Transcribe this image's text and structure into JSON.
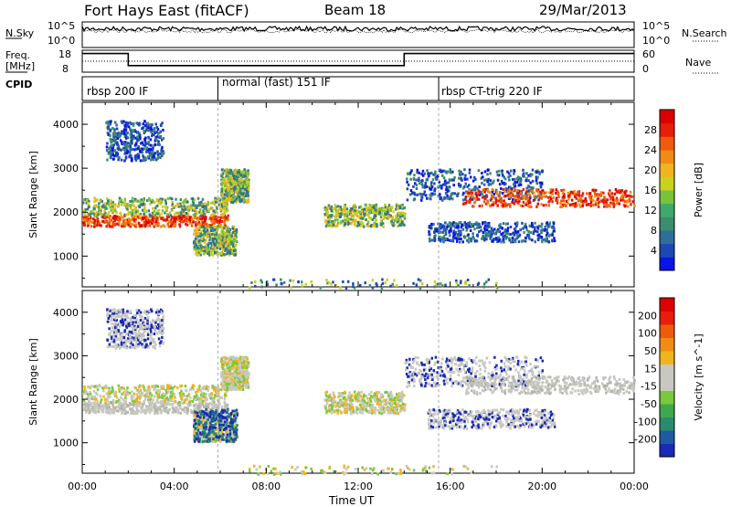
{
  "header": {
    "radar": "Fort Hays East (fitACF)",
    "beam": "Beam 18",
    "date": "29/Mar/2013"
  },
  "noise_panel": {
    "left_label": "N.Sky",
    "right_label": "N.Search",
    "left_ticks": [
      "10^5",
      "10^0"
    ],
    "right_ticks": [
      "10^5",
      "10^0"
    ]
  },
  "freq_panel": {
    "left_label_line1": "Freq.",
    "left_label_line2": "[MHz]",
    "right_label": "Nave",
    "left_ticks": [
      "18",
      "8"
    ],
    "right_ticks": [
      "60",
      "0"
    ],
    "freq_steps": [
      {
        "from_h": 0,
        "to_h": 2.0,
        "value": 0.85
      },
      {
        "from_h": 2.0,
        "to_h": 14.0,
        "value": 0.3
      },
      {
        "from_h": 14.0,
        "to_h": 24.0,
        "value": 0.85
      }
    ],
    "nave_level": 0.5
  },
  "cpid": {
    "label": "CPID",
    "modes": [
      {
        "start_h": 0.0,
        "label": "rbsp 200 IF"
      },
      {
        "start_h": 5.9,
        "label": "normal (fast) 151 IF"
      },
      {
        "start_h": 15.5,
        "label": "rbsp CT-trig 220 IF"
      }
    ]
  },
  "chart_data": [
    {
      "type": "heatmap",
      "title": "",
      "xlabel": "Time UT",
      "ylabel": "Slant Range [km]",
      "x_ticks": [
        "00:00",
        "04:00",
        "08:00",
        "12:00",
        "16:00",
        "20:00",
        "00:00"
      ],
      "xlim_hours": [
        0,
        24
      ],
      "y_ticks": [
        1000,
        2000,
        3000,
        4000
      ],
      "ylim": [
        300,
        4500
      ],
      "colorbar": {
        "label": "Power [dB]",
        "ticks": [
          "4",
          "8",
          "12",
          "16",
          "20",
          "24",
          "28"
        ],
        "colors": [
          "#0a14e6",
          "#1e46b4",
          "#2f6e9b",
          "#3d8c6e",
          "#3fa86a",
          "#7ac23c",
          "#c8d21e",
          "#f0b41e",
          "#f08c14",
          "#ef5a0c",
          "#e61e0a",
          "#dc0000"
        ]
      }
    },
    {
      "type": "heatmap",
      "title": "",
      "xlabel": "Time UT",
      "ylabel": "Slant Range [km]",
      "x_ticks": [
        "00:00",
        "04:00",
        "08:00",
        "12:00",
        "16:00",
        "20:00",
        "00:00"
      ],
      "xlim_hours": [
        0,
        24
      ],
      "y_ticks": [
        1000,
        2000,
        3000,
        4000
      ],
      "ylim": [
        300,
        4500
      ],
      "colorbar": {
        "label": "Velocity [m s^-1]",
        "ticks": [
          "200",
          "100",
          "50",
          "15",
          "-15",
          "-50",
          "-100",
          "-200"
        ],
        "colors": [
          "#1a2ab4",
          "#1e5aa0",
          "#2a8c6e",
          "#3fa84e",
          "#7ac83c",
          "#c8c8c0",
          "#c8c8c0",
          "#f0b41e",
          "#f08c14",
          "#ef5a0c",
          "#e61e0a",
          "#dc0000"
        ]
      }
    }
  ],
  "echo_bands": [
    {
      "t0": 0.0,
      "t1": 6.3,
      "r0": 1700,
      "r1": 1950,
      "kind": "strong"
    },
    {
      "t0": 0.0,
      "t1": 6.3,
      "r0": 1950,
      "r1": 2350,
      "kind": "mid"
    },
    {
      "t0": 6.0,
      "t1": 7.2,
      "r0": 2250,
      "r1": 3000,
      "kind": "mid"
    },
    {
      "t0": 4.8,
      "t1": 6.7,
      "r0": 1050,
      "r1": 1700,
      "kind": "mid"
    },
    {
      "t0": 1.0,
      "t1": 3.5,
      "r0": 3200,
      "r1": 4100,
      "kind": "weak"
    },
    {
      "t0": 10.5,
      "t1": 14.0,
      "r0": 1700,
      "r1": 2200,
      "kind": "mid"
    },
    {
      "t0": 14.0,
      "t1": 20.0,
      "r0": 2300,
      "r1": 3000,
      "kind": "weak"
    },
    {
      "t0": 16.5,
      "t1": 24.0,
      "r0": 2150,
      "r1": 2550,
      "kind": "strong"
    },
    {
      "t0": 15.0,
      "t1": 20.5,
      "r0": 1350,
      "r1": 1800,
      "kind": "weak"
    },
    {
      "t0": 7.0,
      "t1": 18.0,
      "r0": 300,
      "r1": 500,
      "kind": "ground"
    }
  ]
}
